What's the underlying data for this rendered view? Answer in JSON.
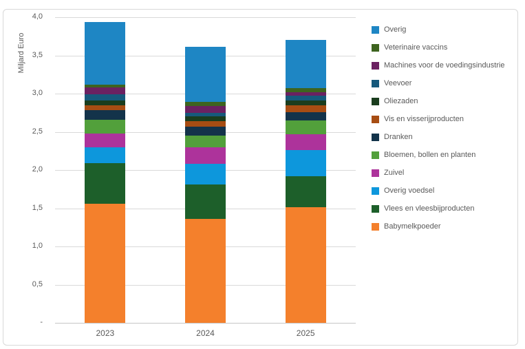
{
  "chart_data": {
    "type": "bar",
    "stacked": true,
    "title": "",
    "ylabel": "Miljard Euro",
    "xlabel": "",
    "ylim": [
      0,
      4.0
    ],
    "ytick_step": 0.5,
    "ytick_labels": [
      "-",
      "0,5",
      "1,0",
      "1,5",
      "2,0",
      "2,5",
      "3,0",
      "3,5",
      "4,0"
    ],
    "grid": true,
    "legend_position": "right",
    "categories": [
      "2023",
      "2024",
      "2025"
    ],
    "series": [
      {
        "name": "Overig",
        "color": "#1E86C4",
        "values": [
          0.82,
          0.72,
          0.63
        ]
      },
      {
        "name": "Veterinaire vaccins",
        "color": "#3E641F",
        "values": [
          0.04,
          0.05,
          0.05
        ]
      },
      {
        "name": "Machines voor de voedingsindustrie",
        "color": "#6B2161",
        "values": [
          0.09,
          0.09,
          0.05
        ]
      },
      {
        "name": "Veevoer",
        "color": "#16597C",
        "values": [
          0.08,
          0.05,
          0.06
        ]
      },
      {
        "name": "Oliezaden",
        "color": "#1A3D1E",
        "values": [
          0.06,
          0.06,
          0.06
        ]
      },
      {
        "name": "Vis en visserijproducten",
        "color": "#A74D13",
        "values": [
          0.07,
          0.07,
          0.09
        ]
      },
      {
        "name": "Dranken",
        "color": "#13334A",
        "values": [
          0.12,
          0.12,
          0.11
        ]
      },
      {
        "name": "Bloemen, bollen en planten",
        "color": "#52A03B",
        "values": [
          0.18,
          0.15,
          0.18
        ]
      },
      {
        "name": "Zuivel",
        "color": "#AD339B",
        "values": [
          0.18,
          0.22,
          0.21
        ]
      },
      {
        "name": "Overig voedsel",
        "color": "#0D97DC",
        "values": [
          0.21,
          0.27,
          0.34
        ]
      },
      {
        "name": "Vlees en vleesbijproducten",
        "color": "#1D5F2A",
        "values": [
          0.53,
          0.45,
          0.41
        ]
      },
      {
        "name": "Babymelkpoeder",
        "color": "#F4802C",
        "values": [
          1.56,
          1.36,
          1.51
        ]
      }
    ],
    "totals": [
      3.94,
      3.61,
      3.7
    ],
    "series_order_note": "series listed top-of-stack first; legend order matches series order"
  },
  "colors": {
    "text": "#595959",
    "gridline": "#D9D9D9",
    "axis_line": "#C6C6C6",
    "frame_border": "#D8D8D8",
    "background": "#FFFFFF"
  }
}
